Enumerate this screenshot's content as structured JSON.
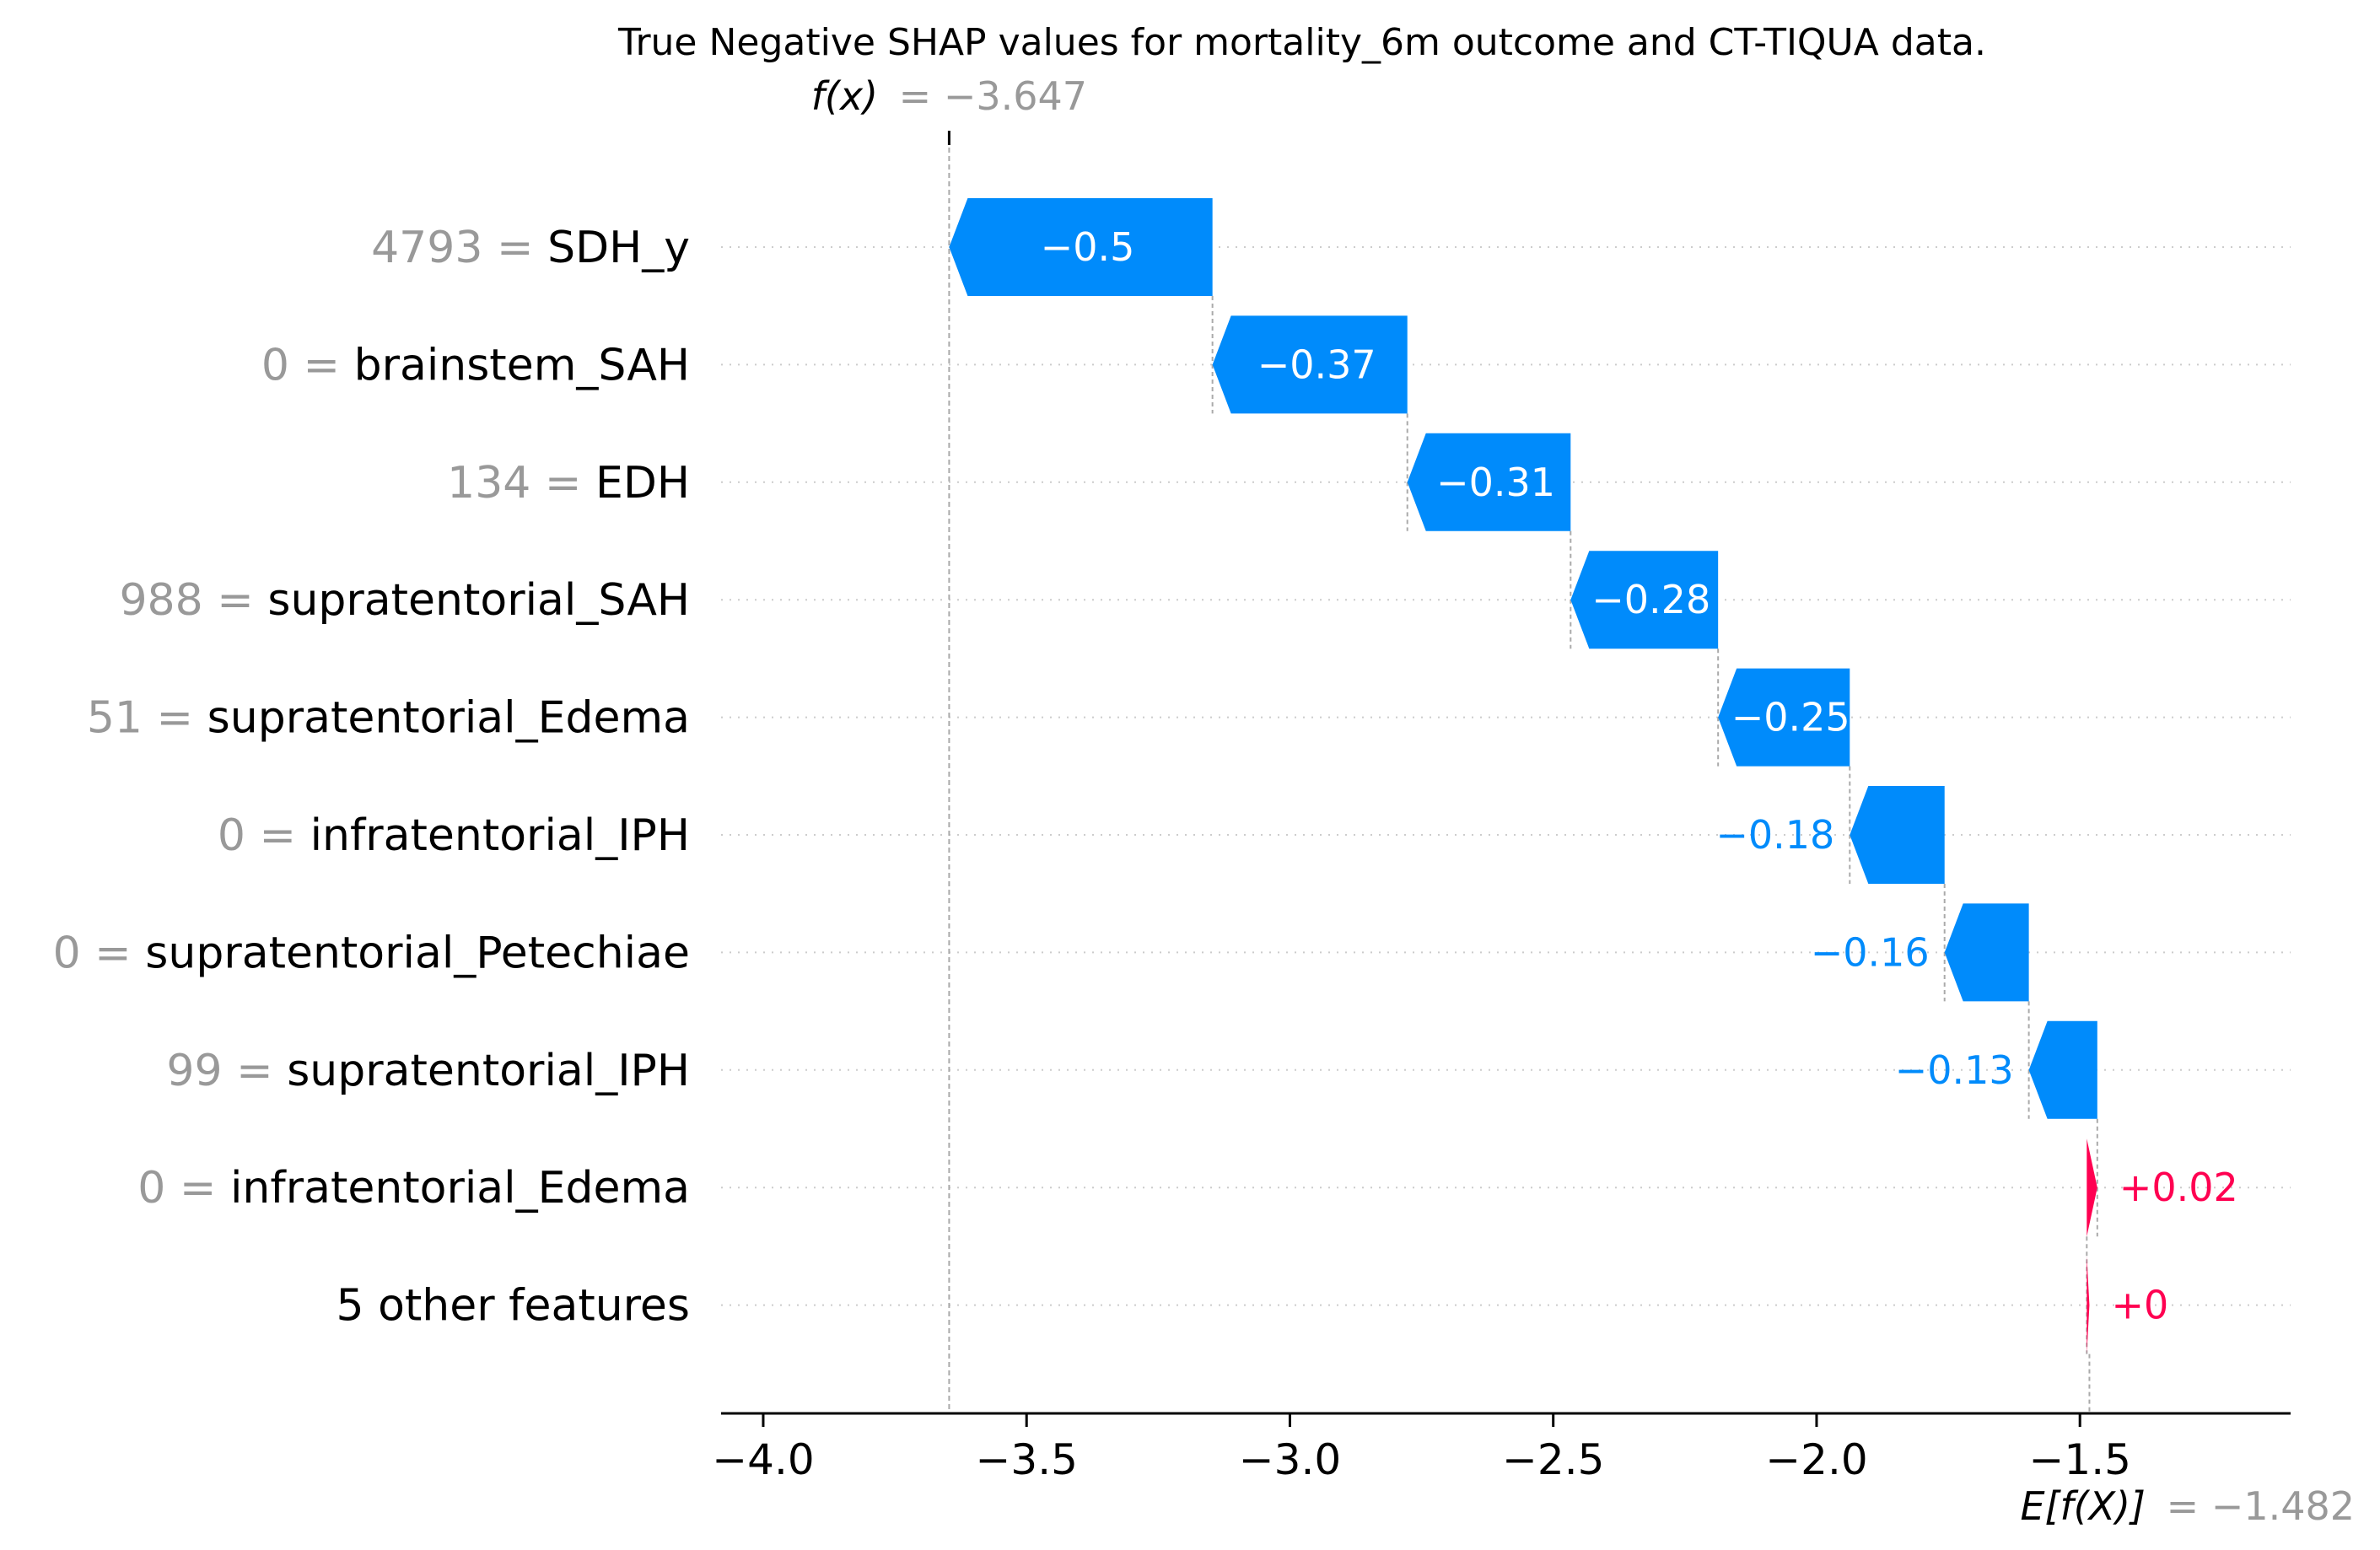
{
  "chart_data": {
    "type": "waterfall",
    "title": "True Negative SHAP values for mortality_6m outcome and CT-TIQUA data.",
    "fx_label": "f(x)",
    "fx_value": "= −3.647",
    "ex_label": "E[f(X)]",
    "ex_value": "= −1.482",
    "fx_numeric": -3.647,
    "ex_numeric": -1.482,
    "xlim": [
      -4.08,
      -1.1
    ],
    "xticks": [
      -4.0,
      -3.5,
      -3.0,
      -2.5,
      -2.0,
      -1.5
    ],
    "xtick_labels": [
      "−4.0",
      "−3.5",
      "−3.0",
      "−2.5",
      "−2.0",
      "−1.5"
    ],
    "features": [
      {
        "value": "4793",
        "name": "SDH_y",
        "start": -3.147,
        "end": -3.647,
        "shap_label": "−0.5",
        "sign": "neg"
      },
      {
        "value": "0",
        "name": "brainstem_SAH",
        "start": -2.777,
        "end": -3.147,
        "shap_label": "−0.37",
        "sign": "neg"
      },
      {
        "value": "134",
        "name": "EDH",
        "start": -2.467,
        "end": -2.777,
        "shap_label": "−0.31",
        "sign": "neg"
      },
      {
        "value": "988",
        "name": "supratentorial_SAH",
        "start": -2.187,
        "end": -2.467,
        "shap_label": "−0.28",
        "sign": "neg"
      },
      {
        "value": "51",
        "name": "supratentorial_Edema",
        "start": -1.937,
        "end": -2.187,
        "shap_label": "−0.25",
        "sign": "neg"
      },
      {
        "value": "0",
        "name": "infratentorial_IPH",
        "start": -1.757,
        "end": -1.937,
        "shap_label": "−0.18",
        "sign": "neg"
      },
      {
        "value": "0",
        "name": "supratentorial_Petechiae",
        "start": -1.597,
        "end": -1.757,
        "shap_label": "−0.16",
        "sign": "neg"
      },
      {
        "value": "99",
        "name": "supratentorial_IPH",
        "start": -1.467,
        "end": -1.597,
        "shap_label": "−0.13",
        "sign": "neg"
      },
      {
        "value": "0",
        "name": "infratentorial_Edema",
        "start": -1.487,
        "end": -1.467,
        "shap_label": "+0.02",
        "sign": "pos"
      },
      {
        "value": "",
        "name": "5 other features",
        "start": -1.482,
        "end": -1.487,
        "shap_label": "+0",
        "sign": "pos"
      }
    ],
    "colors": {
      "negative": "#008bfb",
      "positive": "#ff0051",
      "gray_text": "#999999",
      "grid": "#cccccc"
    }
  }
}
